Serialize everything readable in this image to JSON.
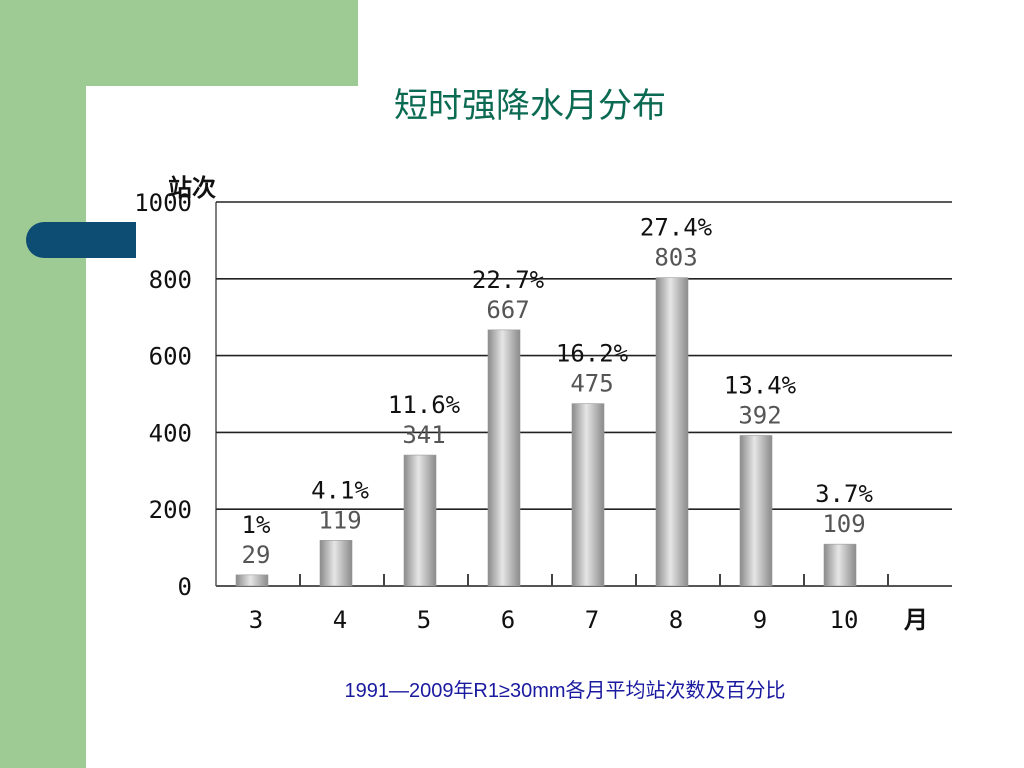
{
  "slide": {
    "title": "短时强降水月分布",
    "caption": "1991—2009年R1≥30mm各月平均站次数及百分比"
  },
  "chart_data": {
    "type": "bar",
    "title": "",
    "ylabel": "站次",
    "xlabel": "月",
    "categories": [
      "3",
      "4",
      "5",
      "6",
      "7",
      "8",
      "9",
      "10"
    ],
    "values": [
      29,
      119,
      341,
      667,
      475,
      803,
      392,
      109
    ],
    "percent_labels": [
      "1%",
      "4.1%",
      "11.6%",
      "22.7%",
      "16.2%",
      "27.4%",
      "13.4%",
      "3.7%"
    ],
    "ylim": [
      0,
      1000
    ],
    "yticks": [
      0,
      200,
      400,
      600,
      800,
      1000
    ],
    "grid": true,
    "legend": "none",
    "bar_color": "#b4b4b4"
  }
}
